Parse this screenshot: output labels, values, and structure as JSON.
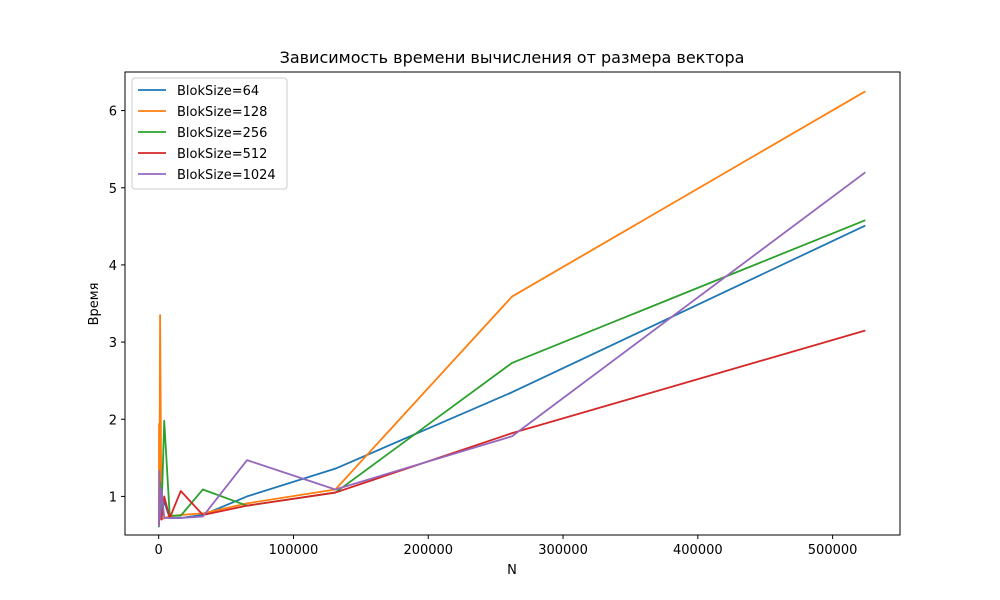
{
  "chart_data": {
    "type": "line",
    "title": "Зависимость времени вычисления от размера вектора",
    "xlabel": "N",
    "ylabel": "Время",
    "xlim": [
      -25000,
      550000
    ],
    "ylim": [
      0.5,
      6.5
    ],
    "xticks": [
      0,
      100000,
      200000,
      300000,
      400000,
      500000
    ],
    "yticks": [
      1,
      2,
      3,
      4,
      5,
      6
    ],
    "grid": false,
    "legend": "top-left",
    "x": [
      128,
      256,
      512,
      1024,
      2048,
      4096,
      8192,
      16384,
      32768,
      65536,
      131072,
      262144,
      524288
    ],
    "series": [
      {
        "name": "BlokSize=64",
        "color": "#1f77b4",
        "values": [
          0.62,
          0.71,
          0.73,
          1.92,
          0.8,
          0.93,
          0.72,
          0.72,
          0.76,
          1.0,
          1.36,
          2.35,
          4.51
        ]
      },
      {
        "name": "BlokSize=128",
        "color": "#ff7f0e",
        "values": [
          0.64,
          1.94,
          0.85,
          3.35,
          0.7,
          0.72,
          0.74,
          0.76,
          0.78,
          0.91,
          1.09,
          3.59,
          6.25
        ]
      },
      {
        "name": "BlokSize=256",
        "color": "#2ca02c",
        "values": [
          0.6,
          0.7,
          0.72,
          1.18,
          0.78,
          1.98,
          0.75,
          0.75,
          1.09,
          0.88,
          1.05,
          2.73,
          4.58
        ]
      },
      {
        "name": "BlokSize=512",
        "color": "#d62728",
        "values": [
          0.63,
          0.72,
          0.8,
          0.72,
          0.7,
          1.0,
          0.72,
          1.07,
          0.76,
          0.88,
          1.05,
          1.82,
          3.15
        ]
      },
      {
        "name": "BlokSize=1024",
        "color": "#9467bd",
        "values": [
          0.61,
          0.82,
          1.33,
          0.71,
          1.1,
          0.72,
          0.72,
          0.72,
          0.74,
          1.47,
          1.09,
          1.78,
          5.2
        ]
      }
    ]
  }
}
